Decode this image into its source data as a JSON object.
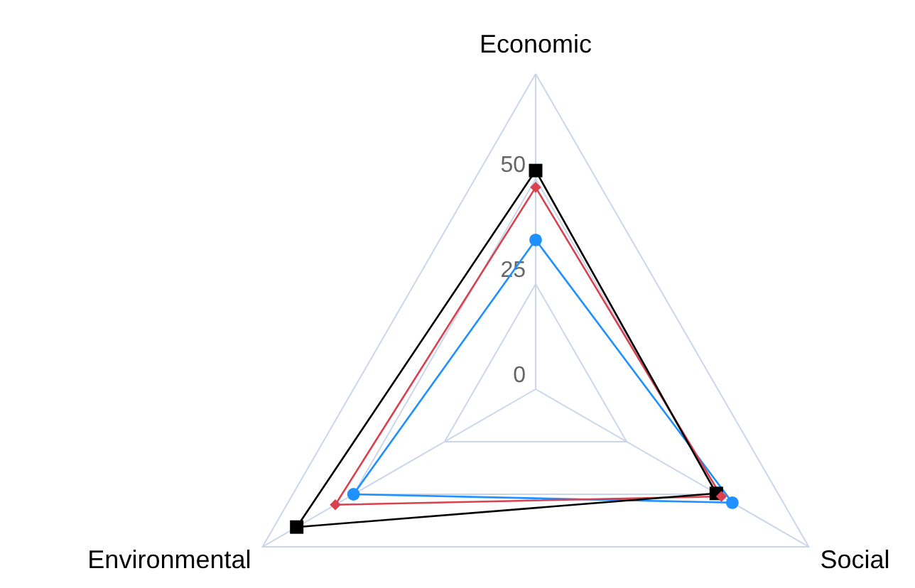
{
  "chart_data": {
    "type": "radar",
    "categories": [
      "Economic",
      "Social",
      "Environmental"
    ],
    "ylim": [
      0,
      75
    ],
    "yticks": [
      0,
      25,
      50
    ],
    "grid": true,
    "series": [
      {
        "color": "#1e90ff",
        "marker": "circle",
        "values": [
          35.5,
          54,
          50
        ]
      },
      {
        "color": "#d9414f",
        "marker": "diamond",
        "values": [
          48,
          51,
          55
        ]
      },
      {
        "color": "#000000",
        "marker": "square",
        "values": [
          52,
          49.6,
          65.6
        ]
      }
    ]
  }
}
